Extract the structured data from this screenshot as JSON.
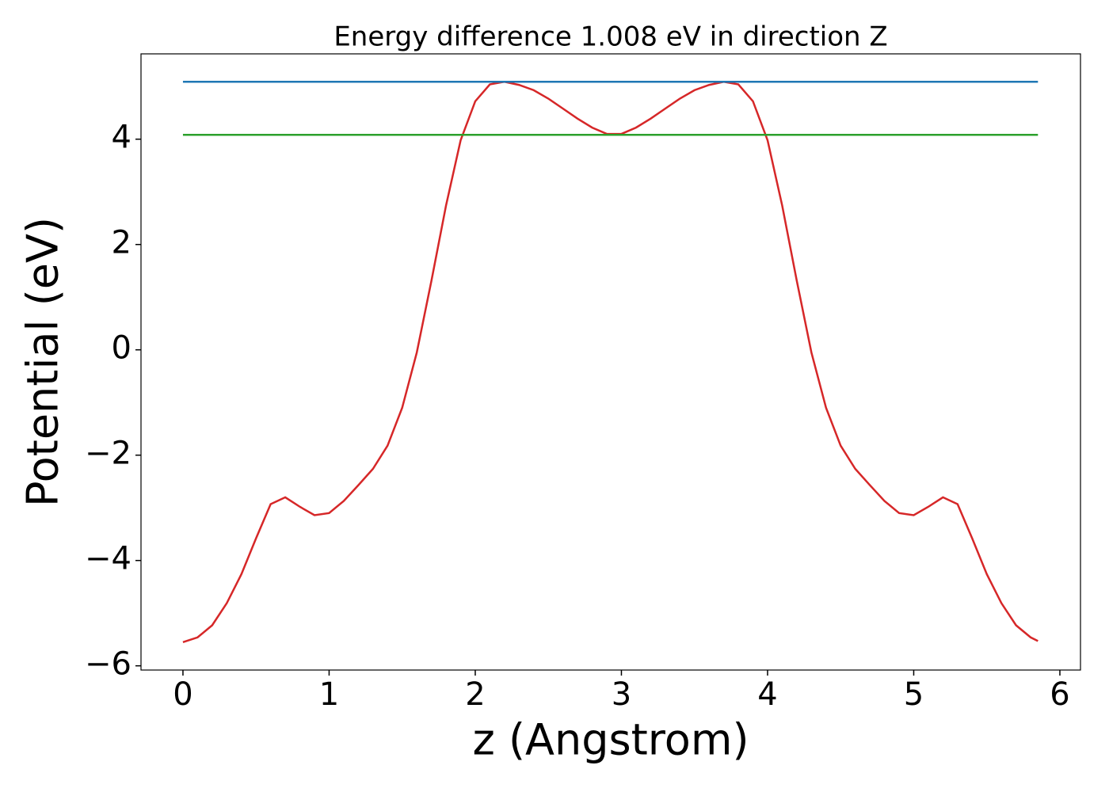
{
  "chart_data": {
    "type": "line",
    "title": "Energy difference 1.008 eV in direction Z",
    "x_label": "z (Angstrom)",
    "y_label": "Potential (eV)",
    "xlim": [
      -0.287,
      6.141
    ],
    "ylim": [
      -6.08,
      5.62
    ],
    "xticks": [
      0,
      1,
      2,
      3,
      4,
      5,
      6
    ],
    "yticks": [
      {
        "value": -6,
        "label": "−6"
      },
      {
        "value": -4,
        "label": "−4"
      },
      {
        "value": -2,
        "label": "−2"
      },
      0,
      2,
      4
    ],
    "series": [
      {
        "color": "#d62728",
        "x": [
          0,
          0.1,
          0.2,
          0.3,
          0.4,
          0.5,
          0.6,
          0.7,
          0.8,
          0.9,
          1.0,
          1.1,
          1.2,
          1.3,
          1.4,
          1.5,
          1.6,
          1.7,
          1.8,
          1.9,
          2.0,
          2.1,
          2.2,
          2.3,
          2.4,
          2.5,
          2.6,
          2.7,
          2.8,
          2.9,
          3.0,
          3.1,
          3.2,
          3.3,
          3.4,
          3.5,
          3.6,
          3.7,
          3.8,
          3.9,
          4.0,
          4.1,
          4.2,
          4.3,
          4.4,
          4.5,
          4.6,
          4.7,
          4.8,
          4.9,
          5.0,
          5.1,
          5.2,
          5.3,
          5.4,
          5.5,
          5.6,
          5.7,
          5.8,
          5.85
        ],
        "values": [
          -5.55,
          -5.46,
          -5.23,
          -4.81,
          -4.26,
          -3.58,
          -2.93,
          -2.8,
          -2.98,
          -3.14,
          -3.1,
          -2.87,
          -2.57,
          -2.26,
          -1.82,
          -1.1,
          -0.05,
          1.31,
          2.74,
          3.98,
          4.72,
          5.04,
          5.09,
          5.03,
          4.93,
          4.77,
          4.58,
          4.39,
          4.22,
          4.1,
          4.1,
          4.22,
          4.39,
          4.58,
          4.77,
          4.93,
          5.03,
          5.09,
          5.04,
          4.72,
          3.98,
          2.74,
          1.31,
          -0.05,
          -1.1,
          -1.82,
          -2.26,
          -2.57,
          -2.87,
          -3.1,
          -3.14,
          -2.98,
          -2.8,
          -2.93,
          -3.58,
          -4.26,
          -4.81,
          -5.23,
          -5.46,
          -5.53
        ]
      },
      {
        "color": "#1f77b4",
        "x": [
          0,
          5.85
        ],
        "values": [
          5.09,
          5.09
        ]
      },
      {
        "color": "#2ca02c",
        "x": [
          0,
          5.85
        ],
        "values": [
          4.082,
          4.082
        ]
      }
    ]
  }
}
